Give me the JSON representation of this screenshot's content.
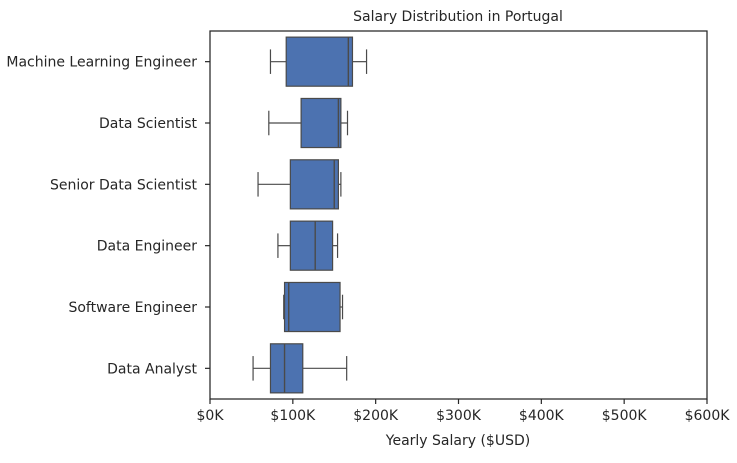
{
  "chart_data": {
    "type": "boxplot",
    "orientation": "horizontal",
    "title": "Salary Distribution in Portugal",
    "xlabel": "Yearly Salary ($USD)",
    "ylabel": "",
    "xlim": [
      0,
      600000
    ],
    "x_ticks": [
      0,
      100000,
      200000,
      300000,
      400000,
      500000,
      600000
    ],
    "x_tick_labels": [
      "$0K",
      "$100K",
      "$200K",
      "$300K",
      "$400K",
      "$500K",
      "$600K"
    ],
    "grid": false,
    "box_color": "#4c72b0",
    "categories": [
      "Machine Learning Engineer",
      "Data Scientist",
      "Senior Data Scientist",
      "Data Engineer",
      "Software Engineer",
      "Data Analyst"
    ],
    "boxes": [
      {
        "whislo": 73000,
        "q1": 92000,
        "median": 167000,
        "q3": 172000,
        "whishi": 189000
      },
      {
        "whislo": 71000,
        "q1": 110000,
        "median": 155000,
        "q3": 158000,
        "whishi": 166000
      },
      {
        "whislo": 58000,
        "q1": 97000,
        "median": 150000,
        "q3": 155000,
        "whishi": 158000
      },
      {
        "whislo": 82000,
        "q1": 97000,
        "median": 127000,
        "q3": 148000,
        "whishi": 154000
      },
      {
        "whislo": 89000,
        "q1": 90000,
        "median": 95000,
        "q3": 157000,
        "whishi": 160000
      },
      {
        "whislo": 52000,
        "q1": 73000,
        "median": 90000,
        "q3": 112000,
        "whishi": 165000
      }
    ]
  }
}
